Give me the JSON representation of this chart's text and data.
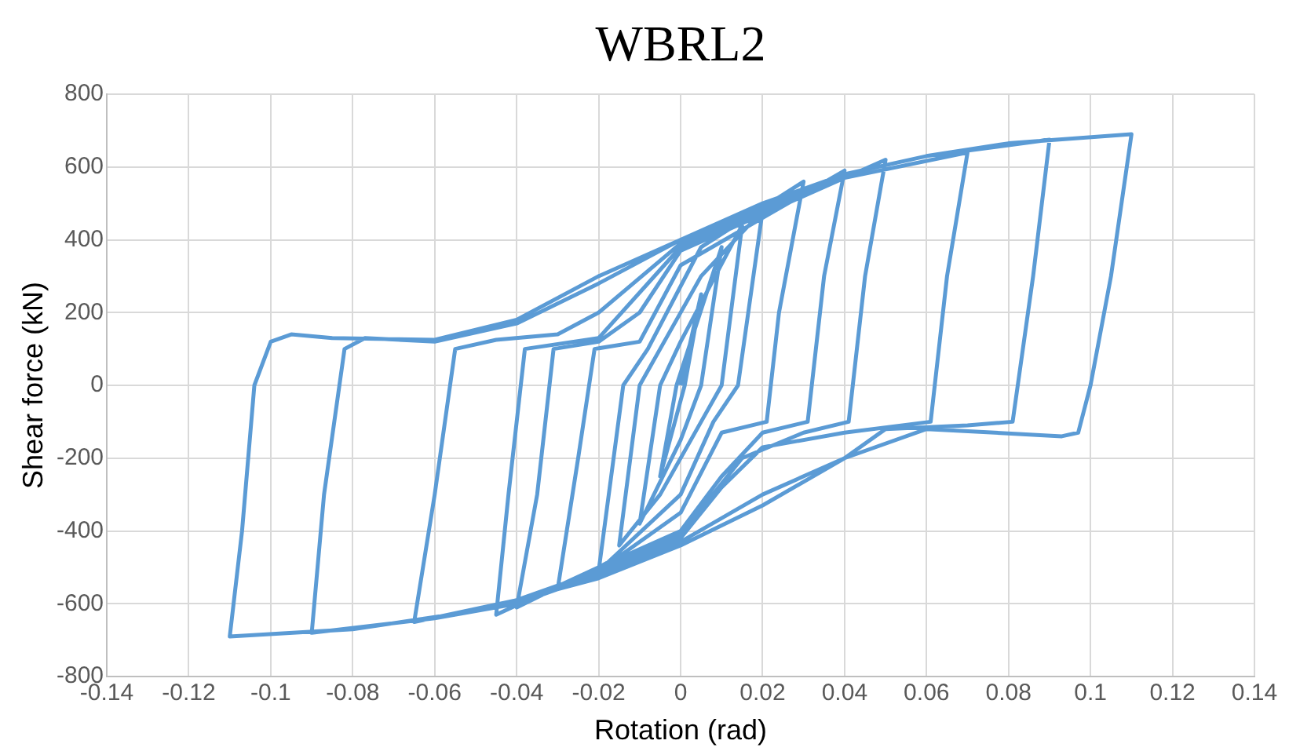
{
  "chart_data": {
    "type": "line",
    "title": "WBRL2",
    "xlabel": "Rotation (rad)",
    "ylabel": "Shear force (kN)",
    "xlim": [
      -0.14,
      0.14
    ],
    "xticks": [
      -0.14,
      -0.12,
      -0.1,
      -0.08,
      -0.06,
      -0.04,
      -0.02,
      0,
      0.02,
      0.04,
      0.06,
      0.08,
      0.1,
      0.12,
      0.14
    ],
    "ylim": [
      -800,
      800
    ],
    "yticks": [
      -800,
      -600,
      -400,
      -200,
      0,
      200,
      400,
      600,
      800
    ],
    "grid": true,
    "legend": false,
    "marker": "none",
    "line_style": "solid",
    "series": [
      {
        "color": "#5b9bd5",
        "x": [
          0,
          0.005,
          0.001,
          -0.005,
          -0.001,
          0.01,
          0.005,
          0,
          -0.01,
          -0.005,
          0,
          0.015,
          0.01,
          0.005,
          -0.005,
          -0.015,
          -0.01,
          -0.005,
          0.005,
          0.02,
          0.014,
          0.008,
          0,
          -0.02,
          -0.014,
          -0.008,
          0.005,
          0.03,
          0.024,
          0.021,
          0.01,
          0,
          -0.015,
          -0.03,
          -0.025,
          -0.021,
          -0.01,
          0,
          0.02,
          0.04,
          0.035,
          0.031,
          0.02,
          0.01,
          0,
          -0.02,
          -0.04,
          -0.035,
          -0.031,
          -0.02,
          -0.01,
          0,
          0.02,
          0.05,
          0.045,
          0.041,
          0.03,
          0.015,
          0,
          -0.02,
          -0.045,
          -0.042,
          -0.038,
          -0.02,
          0,
          0.02,
          0.04,
          0.07,
          0.065,
          0.061,
          0.04,
          0.02,
          0.01,
          0,
          -0.02,
          -0.04,
          -0.065,
          -0.06,
          -0.055,
          -0.045,
          -0.03,
          -0.02,
          0,
          0.02,
          0.04,
          0.06,
          0.09,
          0.086,
          0.081,
          0.07,
          0.05,
          0.04,
          0.02,
          0,
          -0.02,
          -0.04,
          -0.06,
          -0.09,
          -0.087,
          -0.082,
          -0.077,
          -0.06,
          -0.04,
          -0.02,
          0,
          0.02,
          0.04,
          0.06,
          0.08,
          0.11,
          0.105,
          0.1,
          0.097,
          0.093,
          0.06,
          0.04,
          0.02,
          0,
          -0.02,
          -0.05,
          -0.08,
          -0.11,
          -0.107,
          -0.104,
          -0.1,
          -0.095,
          -0.085,
          -0.06,
          -0.04,
          -0.02,
          0
        ],
        "values": [
          0,
          250,
          0,
          -250,
          0,
          380,
          0,
          -150,
          -380,
          0,
          120,
          440,
          0,
          -100,
          -300,
          -440,
          0,
          100,
          300,
          480,
          0,
          -100,
          -300,
          -510,
          0,
          100,
          380,
          560,
          200,
          -100,
          -130,
          -350,
          -470,
          -560,
          -200,
          100,
          120,
          330,
          460,
          590,
          300,
          -100,
          -130,
          -250,
          -400,
          -500,
          -610,
          -300,
          100,
          120,
          200,
          370,
          470,
          620,
          300,
          -100,
          -130,
          -200,
          -410,
          -500,
          -630,
          -300,
          100,
          130,
          380,
          480,
          570,
          640,
          300,
          -100,
          -130,
          -170,
          -280,
          -420,
          -510,
          -590,
          -650,
          -300,
          100,
          125,
          140,
          200,
          390,
          490,
          580,
          630,
          675,
          300,
          -100,
          -110,
          -120,
          -200,
          -300,
          -430,
          -520,
          -600,
          -640,
          -680,
          -300,
          100,
          130,
          120,
          170,
          280,
          400,
          500,
          580,
          630,
          665,
          690,
          300,
          0,
          -130,
          -140,
          -120,
          -200,
          -330,
          -440,
          -530,
          -620,
          -670,
          -690,
          -400,
          0,
          120,
          140,
          130,
          125,
          180,
          300,
          400
        ]
      }
    ]
  }
}
